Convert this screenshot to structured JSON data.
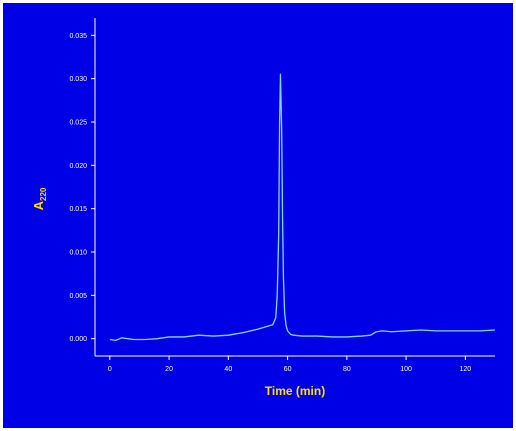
{
  "chart_data": {
    "type": "line",
    "xlabel": "Time (min)",
    "ylabel_main": "A",
    "ylabel_sub": "220",
    "xlim": [
      -5,
      130
    ],
    "ylim": [
      -0.002,
      0.037
    ],
    "xticks": [
      0,
      20,
      40,
      60,
      80,
      100,
      120
    ],
    "xtick_labels": [
      "0",
      "20",
      "40",
      "60",
      "80",
      "100",
      "120"
    ],
    "yticks": [
      0.0,
      0.005,
      0.01,
      0.015,
      0.02,
      0.025,
      0.03,
      0.035
    ],
    "ytick_labels": [
      "0.000",
      "0.005",
      "0.010",
      "0.015",
      "0.020",
      "0.025",
      "0.030",
      "0.035"
    ],
    "grid": false,
    "series": [
      {
        "color": "#80d8ff",
        "x": [
          0,
          2,
          4,
          8,
          12,
          16,
          20,
          25,
          30,
          35,
          40,
          45,
          50,
          53,
          55,
          56,
          56.5,
          57,
          57.3,
          57.6,
          58,
          58.3,
          58.6,
          59,
          59.5,
          60,
          61,
          62,
          65,
          70,
          75,
          80,
          85,
          88,
          90,
          92,
          95,
          100,
          105,
          110,
          115,
          120,
          125,
          130
        ],
        "y": [
          -0.0001,
          -0.0002,
          0.0001,
          -0.0001,
          -0.0001,
          0.0,
          0.0002,
          0.0002,
          0.0004,
          0.0003,
          0.0004,
          0.0007,
          0.0011,
          0.0014,
          0.0016,
          0.0024,
          0.005,
          0.012,
          0.025,
          0.0305,
          0.024,
          0.014,
          0.007,
          0.003,
          0.0015,
          0.0009,
          0.0005,
          0.0004,
          0.0003,
          0.0003,
          0.0002,
          0.0002,
          0.0003,
          0.0004,
          0.0008,
          0.0009,
          0.0008,
          0.0009,
          0.001,
          0.0009,
          0.0009,
          0.0009,
          0.0009,
          0.001
        ]
      }
    ]
  }
}
